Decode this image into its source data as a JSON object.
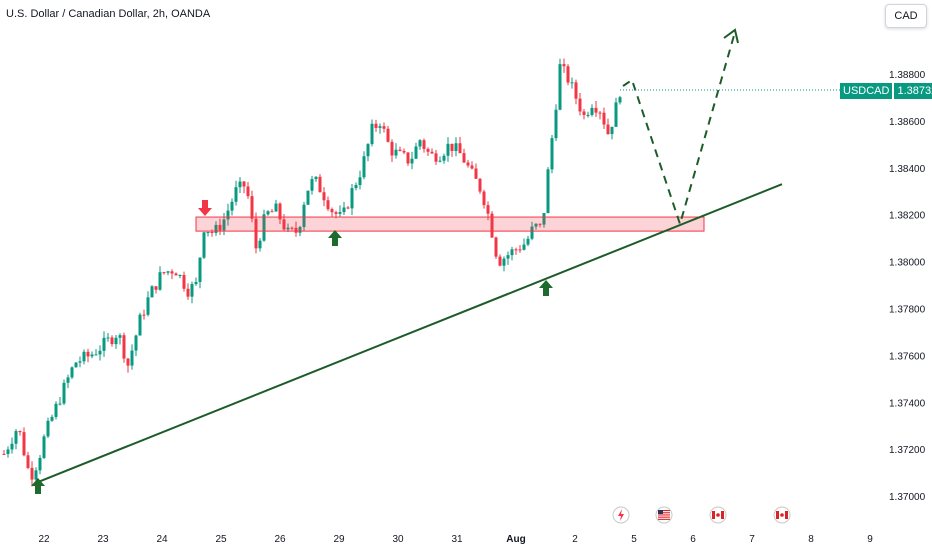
{
  "header": {
    "title": "U.S. Dollar / Canadian Dollar, 2h, OANDA"
  },
  "currency_button": {
    "label": "CAD"
  },
  "price_tag": {
    "symbol": "USDCAD",
    "price": "1.38732"
  },
  "colors": {
    "up": "#089981",
    "down": "#f23645",
    "trendline": "#1e5b2a",
    "zone": "#f23645"
  },
  "icons": [
    "lightning-icon",
    "us-flag-icon",
    "canada-flag-icon",
    "canada-flag-icon"
  ],
  "chart_data": {
    "type": "candlestick",
    "title": "U.S. Dollar / Canadian Dollar, 2h, OANDA",
    "y_ticks": [
      "1.38800",
      "1.38600",
      "1.38400",
      "1.38200",
      "1.38000",
      "1.37800",
      "1.37600",
      "1.37400",
      "1.37200",
      "1.37000"
    ],
    "x_ticks": [
      "22",
      "23",
      "24",
      "25",
      "26",
      "29",
      "30",
      "31",
      "Aug",
      "2",
      "5",
      "6",
      "7",
      "8",
      "9"
    ],
    "ylim": [
      1.3693,
      1.39
    ],
    "last_price": 1.38732,
    "trendline": {
      "from": [
        "22",
        1.3706
      ],
      "to": [
        "7",
        1.3833
      ]
    },
    "resistance_zone": [
      1.3813,
      1.3819
    ],
    "projection_path": [
      [
        "2",
        1.3875
      ],
      [
        "5",
        1.3876
      ],
      [
        "6",
        1.3817
      ],
      [
        "7",
        1.3895
      ]
    ],
    "arrows": [
      {
        "direction": "down",
        "near": "24",
        "price": 1.3824,
        "color": "red"
      },
      {
        "direction": "up",
        "near": "22",
        "price": 1.3704,
        "color": "green"
      },
      {
        "direction": "up",
        "near": "29",
        "price": 1.381,
        "color": "green"
      },
      {
        "direction": "up",
        "near": "Aug",
        "price": 1.3787,
        "color": "green"
      }
    ]
  }
}
